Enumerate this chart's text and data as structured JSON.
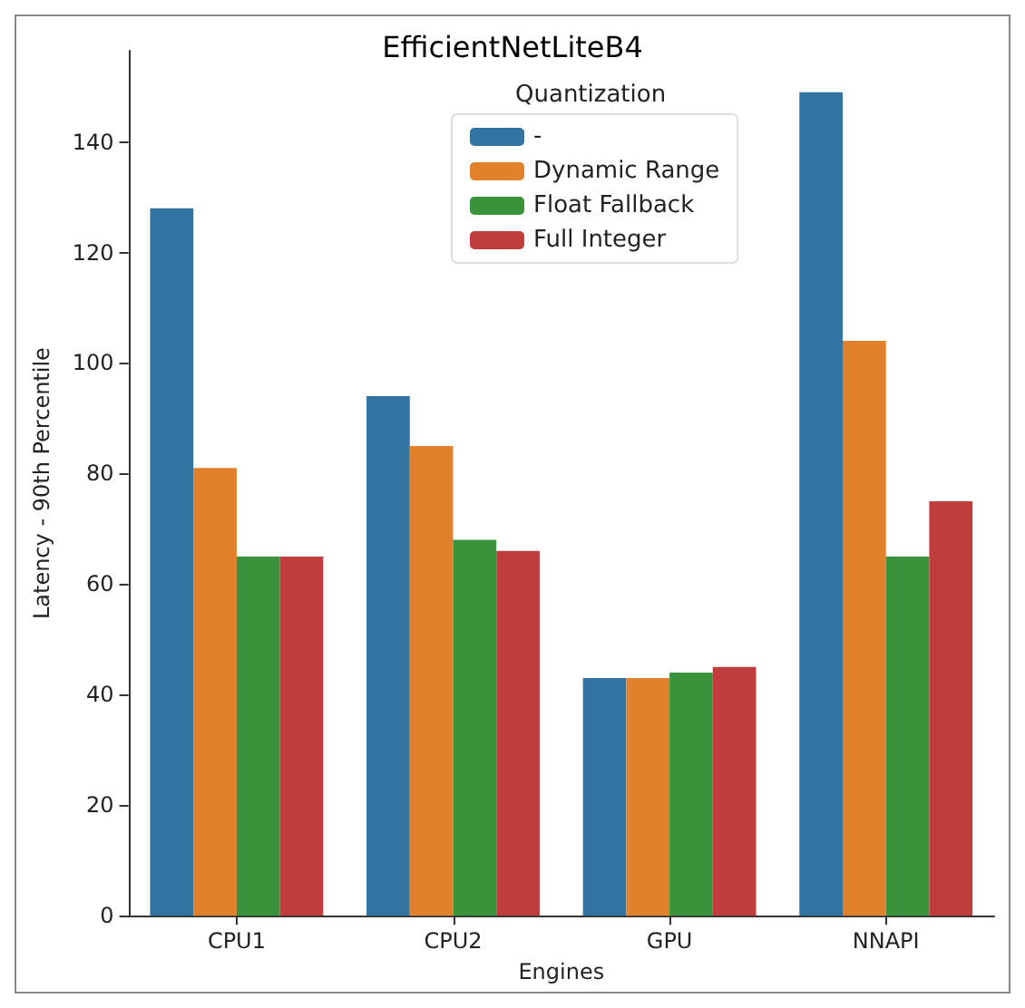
{
  "chart_data": {
    "type": "bar",
    "title": "EfficientNetLiteB4",
    "xlabel": "Engines",
    "ylabel": "Latency - 90th Percentile",
    "legend_title": "Quantization",
    "legend": "top",
    "categories": [
      "CPU1",
      "CPU2",
      "GPU",
      "NNAPI"
    ],
    "series": [
      {
        "name": "-",
        "color": "#3274a1",
        "values": [
          128,
          94,
          43,
          149
        ]
      },
      {
        "name": "Dynamic Range",
        "color": "#e1812c",
        "values": [
          81,
          85,
          43,
          104
        ]
      },
      {
        "name": "Float Fallback",
        "color": "#3a923a",
        "values": [
          65,
          68,
          44,
          65
        ]
      },
      {
        "name": "Full Integer",
        "color": "#c03d3e",
        "values": [
          65,
          66,
          45,
          75
        ]
      }
    ],
    "ylim": [
      0,
      156.5
    ],
    "yticks": [
      0,
      20,
      40,
      60,
      80,
      100,
      120,
      140
    ],
    "grid": false
  }
}
